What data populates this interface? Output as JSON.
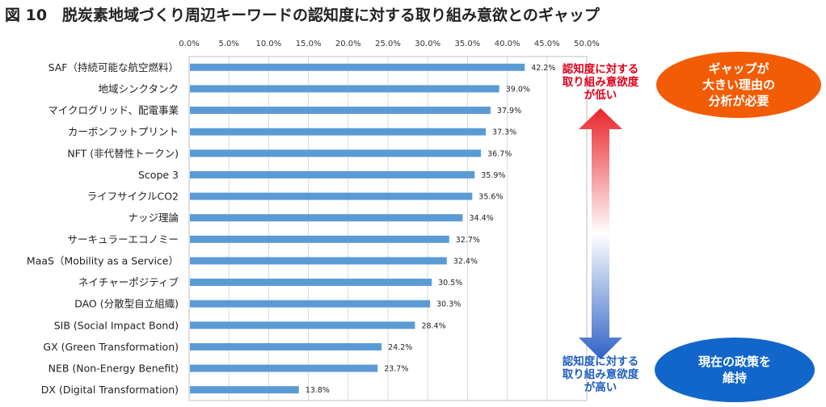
{
  "title": "図 10　脱炭素地域づくり周辺キーワードの認知度に対する取り組み意欲とのギャップ",
  "annotations": {
    "top_text": [
      "認知度に対する",
      "取り組み意欲度",
      "が低い"
    ],
    "bottom_text": [
      "認知度に対する",
      "取り組み意欲度",
      "が高い"
    ],
    "top_oval": [
      "ギャップが",
      "大きい理由の",
      "分析が必要"
    ],
    "bottom_oval": [
      "現在の政策を",
      "維持"
    ],
    "top_color": "#e0001a",
    "bottom_color": "#1f5fc1",
    "top_oval_color": "#f25c05",
    "bottom_oval_color": "#1266c9"
  },
  "chart_data": {
    "type": "bar",
    "orientation": "horizontal",
    "categories": [
      "SAF（持続可能な航空燃料）",
      "地域シンクタンク",
      "マイクログリッド、配電事業",
      "カーボンフットプリント",
      "NFT (非代替性トークン)",
      "Scope 3",
      "ライフサイクルCO2",
      "ナッジ理論",
      "サーキュラーエコノミー",
      "MaaS（Mobility as a Service）",
      "ネイチャーポジティブ",
      "DAO (分散型自立組織)",
      "SIB (Social Impact Bond)",
      "GX (Green Transformation)",
      "NEB (Non-Energy Benefit)",
      "DX (Digital Transformation)"
    ],
    "values": [
      42.2,
      39.0,
      37.9,
      37.3,
      36.7,
      35.9,
      35.6,
      34.4,
      32.7,
      32.4,
      30.5,
      30.3,
      28.4,
      24.2,
      23.7,
      13.8
    ],
    "value_labels": [
      "42.2%",
      "39.0%",
      "37.9%",
      "37.3%",
      "36.7%",
      "35.9%",
      "35.6%",
      "34.4%",
      "32.7%",
      "32.4%",
      "30.5%",
      "30.3%",
      "28.4%",
      "24.2%",
      "23.7%",
      "13.8%"
    ],
    "xlim": [
      0,
      50
    ],
    "xticks": [
      "0.0%",
      "5.0%",
      "10.0%",
      "15.0%",
      "20.0%",
      "25.0%",
      "30.0%",
      "35.0%",
      "40.0%",
      "45.0%",
      "50.0%"
    ],
    "bar_color": "#5b9bd5",
    "grid": true,
    "axis_position": "top"
  }
}
